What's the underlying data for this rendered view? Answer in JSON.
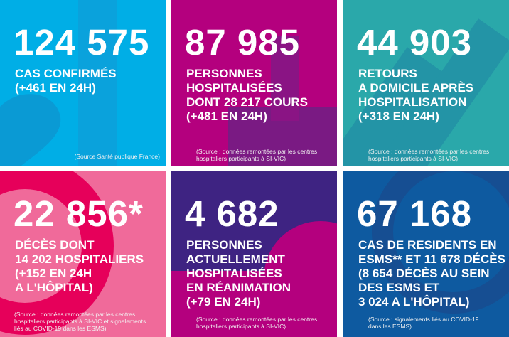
{
  "colors": {
    "blue": "#00aee6",
    "magenta": "#b4007e",
    "teal": "#2aa8aa",
    "pink": "#f06a9a",
    "purple": "#3e2382",
    "darkblue": "#0e5aa0"
  },
  "panels": [
    {
      "number": "124 575",
      "label": [
        "CAS CONFIRMÉS",
        "(+461 EN 24H)"
      ],
      "source": [
        "(Source Santé publique France)"
      ]
    },
    {
      "number": "87 985",
      "label": [
        "PERSONNES",
        "HOSPITALISÉES",
        "DONT 28 217 COURS",
        "(+481 EN 24H)"
      ],
      "source": [
        "(Source : données remontées par les centres",
        "hospitaliers participants à SI-VIC)"
      ]
    },
    {
      "number": "44 903",
      "label": [
        "RETOURS",
        "A DOMICILE APRÈS",
        "HOSPITALISATION",
        "(+318 EN 24H)"
      ],
      "source": [
        "(Source : données remontées par les centres",
        "hospitaliers participants à SI-VIC)"
      ]
    },
    {
      "number": "22 856*",
      "label": [
        "DÉCÈS DONT",
        "14 202 HOSPITALIERS",
        "(+152 EN 24H",
        "A L'HÔPITAL)"
      ],
      "source": [
        "(Source : données remontées par les centres",
        "hospitaliers participants à SI-VIC et signalements",
        "liés au COVID-19 dans les ESMS)"
      ]
    },
    {
      "number": "4 682",
      "label": [
        "PERSONNES",
        "ACTUELLEMENT",
        "HOSPITALISÉES",
        "EN RÉANIMATION",
        "(+79 EN 24H)"
      ],
      "source": [
        "(Source : données remontées par les centres",
        "hospitaliers participants à SI-VIC)"
      ]
    },
    {
      "number": "67 168",
      "label": [
        "CAS DE RESIDENTS EN",
        "ESMS** ET 11 678 DÉCÈS",
        "(8 654 DÉCÈS AU SEIN",
        "DES ESMS ET",
        "3 024 A L'HÔPITAL)"
      ],
      "source": [
        "(Source : signalements liés au COVID-19",
        "dans les ESMS)"
      ]
    }
  ]
}
